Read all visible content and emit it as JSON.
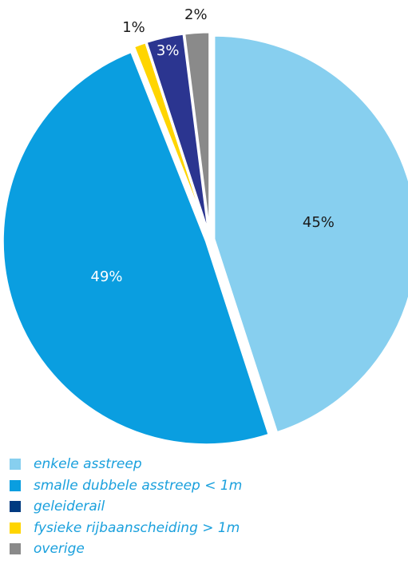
{
  "chart_data": {
    "type": "pie",
    "slices": [
      {
        "label": "enkele asstreep",
        "value": 45,
        "value_label": "45%",
        "color": "#87cfef",
        "label_color": "#1a1a1a"
      },
      {
        "label": "smalle dubbele asstreep < 1m",
        "value": 49,
        "value_label": "49%",
        "color": "#0a9ee0",
        "label_color": "#ffffff"
      },
      {
        "label": "fysieke rijbaanscheiding > 1m",
        "value": 1,
        "value_label": "1%",
        "color": "#ffd500",
        "label_color": "#1a1a1a"
      },
      {
        "label": "geleiderail",
        "value": 3,
        "value_label": "3%",
        "color": "#2b3590",
        "label_color": "#ffffff"
      },
      {
        "label": "overige",
        "value": 2,
        "value_label": "2%",
        "color": "#8a8a8a",
        "label_color": "#1a1a1a"
      }
    ],
    "legend": [
      {
        "label": "enkele asstreep",
        "color": "#87cfef"
      },
      {
        "label": "smalle dubbele asstreep < 1m",
        "color": "#0a9ee0"
      },
      {
        "label": "geleiderail",
        "color": "#003a80"
      },
      {
        "label": "fysieke rijbaanscheiding > 1m",
        "color": "#ffd500"
      },
      {
        "label": "overige",
        "color": "#8a8a8a"
      }
    ],
    "legend_position": "bottom-left",
    "legend_text_color": "#1aa0dd",
    "exploded": true
  }
}
